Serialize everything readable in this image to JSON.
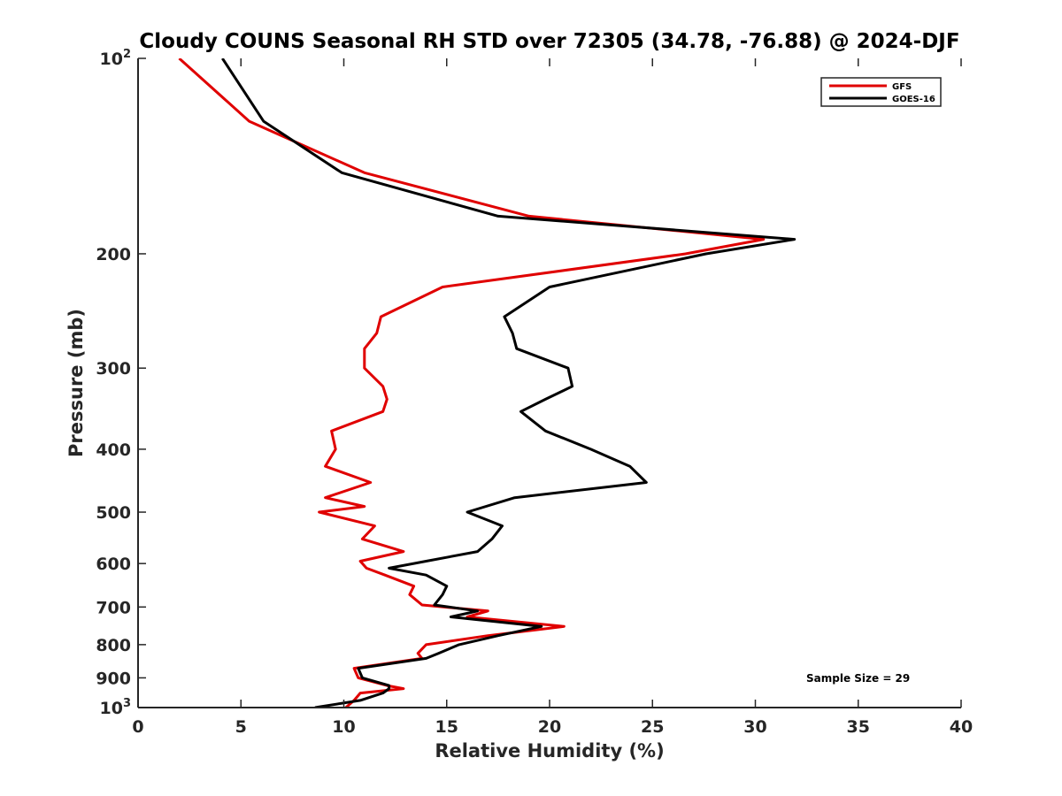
{
  "chart_data": {
    "type": "line",
    "title": "Cloudy COUNS Seasonal RH STD over 72305 (34.78, -76.88) @ 2024-DJF",
    "xlabel": "Relative Humidity (%)",
    "ylabel": "Pressure (mb)",
    "xlim": [
      0,
      40
    ],
    "ylim": [
      100,
      1000
    ],
    "y_scale": "log",
    "y_reversed": true,
    "x_ticks": [
      0,
      5,
      10,
      15,
      20,
      25,
      30,
      35,
      40
    ],
    "x_tick_labels": [
      "0",
      "5",
      "10",
      "15",
      "20",
      "25",
      "30",
      "35",
      "40"
    ],
    "y_ticks": [
      {
        "value": 100,
        "label": "10",
        "sup": "2"
      },
      {
        "value": 200,
        "label": "200"
      },
      {
        "value": 300,
        "label": "300"
      },
      {
        "value": 400,
        "label": "400"
      },
      {
        "value": 500,
        "label": "500"
      },
      {
        "value": 600,
        "label": "600"
      },
      {
        "value": 700,
        "label": "700"
      },
      {
        "value": 800,
        "label": "800"
      },
      {
        "value": 900,
        "label": "900"
      },
      {
        "value": 1000,
        "label": "10",
        "sup": "3"
      }
    ],
    "legend_position": "top-right",
    "annotation": "Sample Size = 29",
    "series": [
      {
        "name": "GFS",
        "color": "#e00000",
        "points": [
          [
            2.0,
            100
          ],
          [
            5.4,
            125
          ],
          [
            11.0,
            150
          ],
          [
            19.0,
            175
          ],
          [
            30.4,
            190
          ],
          [
            26.6,
            200
          ],
          [
            14.8,
            225
          ],
          [
            11.8,
            250
          ],
          [
            11.6,
            265
          ],
          [
            11.0,
            280
          ],
          [
            11.0,
            300
          ],
          [
            11.9,
            320
          ],
          [
            12.1,
            335
          ],
          [
            11.9,
            350
          ],
          [
            9.4,
            375
          ],
          [
            9.6,
            400
          ],
          [
            9.1,
            425
          ],
          [
            11.3,
            450
          ],
          [
            9.1,
            475
          ],
          [
            11.0,
            490
          ],
          [
            8.8,
            500
          ],
          [
            11.5,
            525
          ],
          [
            10.9,
            550
          ],
          [
            12.9,
            575
          ],
          [
            10.8,
            595
          ],
          [
            11.1,
            610
          ],
          [
            12.0,
            625
          ],
          [
            13.4,
            650
          ],
          [
            13.2,
            670
          ],
          [
            13.8,
            695
          ],
          [
            17.0,
            710
          ],
          [
            16.0,
            725
          ],
          [
            20.7,
            750
          ],
          [
            17.0,
            775
          ],
          [
            14.0,
            800
          ],
          [
            13.6,
            825
          ],
          [
            13.8,
            840
          ],
          [
            10.5,
            870
          ],
          [
            10.7,
            900
          ],
          [
            12.1,
            925
          ],
          [
            12.9,
            935
          ],
          [
            10.8,
            950
          ],
          [
            10.5,
            975
          ],
          [
            10.1,
            1000
          ]
        ]
      },
      {
        "name": "GOES-16",
        "color": "#000000",
        "points": [
          [
            4.1,
            100
          ],
          [
            6.1,
            125
          ],
          [
            9.9,
            150
          ],
          [
            17.5,
            175
          ],
          [
            31.9,
            190
          ],
          [
            27.6,
            200
          ],
          [
            20.0,
            225
          ],
          [
            17.8,
            250
          ],
          [
            18.2,
            265
          ],
          [
            18.4,
            280
          ],
          [
            20.9,
            300
          ],
          [
            21.1,
            320
          ],
          [
            19.8,
            335
          ],
          [
            18.6,
            350
          ],
          [
            19.8,
            375
          ],
          [
            22.0,
            400
          ],
          [
            23.9,
            425
          ],
          [
            24.7,
            450
          ],
          [
            18.3,
            475
          ],
          [
            16.0,
            500
          ],
          [
            17.7,
            525
          ],
          [
            17.2,
            550
          ],
          [
            16.5,
            575
          ],
          [
            14.0,
            595
          ],
          [
            12.2,
            610
          ],
          [
            14.0,
            625
          ],
          [
            15.0,
            650
          ],
          [
            14.8,
            670
          ],
          [
            14.4,
            695
          ],
          [
            16.5,
            710
          ],
          [
            15.2,
            725
          ],
          [
            19.6,
            750
          ],
          [
            17.5,
            775
          ],
          [
            15.6,
            800
          ],
          [
            14.6,
            825
          ],
          [
            14.0,
            840
          ],
          [
            10.7,
            870
          ],
          [
            10.9,
            900
          ],
          [
            12.2,
            925
          ],
          [
            12.2,
            935
          ],
          [
            11.9,
            950
          ],
          [
            10.8,
            975
          ],
          [
            8.6,
            1000
          ]
        ]
      }
    ]
  }
}
